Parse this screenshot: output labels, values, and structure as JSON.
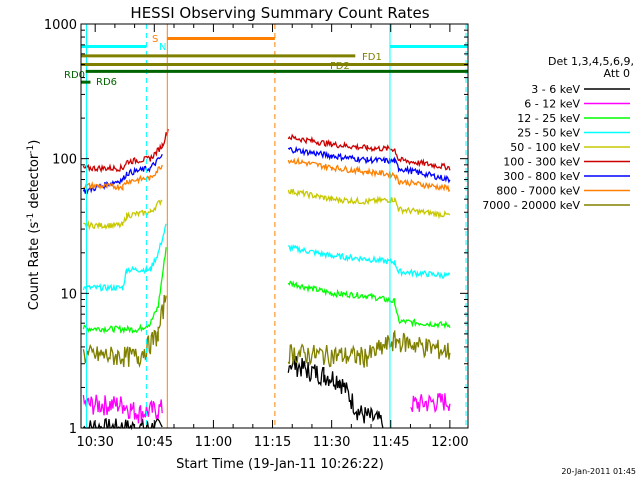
{
  "chart_data": {
    "type": "line",
    "title": "HESSI Observing Summary Count Rates",
    "xlabel": "Start Time (19-Jan-11 10:26:22)",
    "ylabel_main": "Count Rate (s",
    "ylabel_sup1": "-1",
    "ylabel_mid": " detector",
    "ylabel_sup2": "-1",
    "ylabel_end": ")",
    "yscale": "log",
    "ylim": [
      1,
      1000
    ],
    "xlim_minutes": [
      26.4,
      124.6
    ],
    "x_tick_labels": [
      "10:30",
      "10:45",
      "11:00",
      "11:15",
      "11:30",
      "11:45",
      "12:00"
    ],
    "x_ticks_minutes": [
      30,
      45,
      60,
      75,
      90,
      105,
      120
    ],
    "y_tick_labels": [
      "1",
      "10",
      "100",
      "1000"
    ],
    "y_ticks": [
      1,
      10,
      100,
      1000
    ],
    "legend": {
      "header_line1": "Det 1,3,4,5,6,9,",
      "header_line2": "Att 0",
      "placement": "right"
    },
    "series": [
      {
        "name": "3 - 6 keV",
        "color": "#000000",
        "segments": [
          [
            [
              27,
              1
            ],
            [
              47,
              1
            ]
          ],
          [
            [
              79,
              3.1
            ],
            [
              84,
              2.7
            ],
            [
              88,
              2.5
            ],
            [
              92,
              2.3
            ],
            [
              97,
              1.3
            ],
            [
              103,
              1.1
            ]
          ]
        ]
      },
      {
        "name": "6 - 12 keV",
        "color": "#ff00ff",
        "segments": [
          [
            [
              27,
              1.5
            ],
            [
              37,
              1.5
            ],
            [
              41,
              1.3
            ],
            [
              47,
              1.4
            ]
          ],
          [
            [
              110,
              1.5
            ],
            [
              120,
              1.6
            ]
          ]
        ]
      },
      {
        "name": "12 - 25 keV",
        "color": "#00ff00",
        "segments": [
          [
            [
              27,
              5.5
            ],
            [
              41,
              5.4
            ],
            [
              44,
              6
            ],
            [
              46,
              8
            ],
            [
              48,
              22
            ]
          ],
          [
            [
              79,
              12
            ],
            [
              90,
              10
            ],
            [
              99,
              9.6
            ],
            [
              106,
              8.7
            ],
            [
              107,
              6.2
            ],
            [
              120,
              5.8
            ]
          ]
        ]
      },
      {
        "name": "25 - 50 keV",
        "color": "#00ffff",
        "segments": [
          [
            [
              27,
              11
            ],
            [
              37,
              11
            ],
            [
              38,
              15
            ],
            [
              44,
              15
            ],
            [
              46,
              20
            ],
            [
              48,
              32
            ]
          ],
          [
            [
              79,
              22
            ],
            [
              90,
              19
            ],
            [
              99,
              18
            ],
            [
              106,
              17
            ],
            [
              107,
              14.5
            ],
            [
              120,
              13.5
            ]
          ]
        ]
      },
      {
        "name": "50 - 100 keV",
        "color": "#c8c800",
        "segments": [
          [
            [
              27,
              32
            ],
            [
              37,
              32
            ],
            [
              38,
              38
            ],
            [
              44,
              40
            ],
            [
              47,
              50
            ]
          ],
          [
            [
              79,
              58
            ],
            [
              90,
              50
            ],
            [
              99,
              48
            ],
            [
              106,
              50
            ],
            [
              107,
              42
            ],
            [
              120,
              38
            ]
          ]
        ]
      },
      {
        "name": "100 - 300 keV",
        "color": "#cc0000",
        "segments": [
          [
            [
              27,
              85
            ],
            [
              37,
              85
            ],
            [
              38,
              95
            ],
            [
              44,
              100
            ],
            [
              47,
              125
            ],
            [
              48.5,
              165
            ]
          ],
          [
            [
              79,
              145
            ],
            [
              90,
              128
            ],
            [
              99,
              120
            ],
            [
              106,
              118
            ],
            [
              107,
              98
            ],
            [
              120,
              86
            ]
          ]
        ]
      },
      {
        "name": "300 - 800 keV",
        "color": "#0000ff",
        "segments": [
          [
            [
              27,
              57
            ],
            [
              37,
              70
            ],
            [
              38,
              78
            ],
            [
              44,
              85
            ],
            [
              47,
              105
            ]
          ],
          [
            [
              79,
              118
            ],
            [
              90,
              105
            ],
            [
              99,
              98
            ],
            [
              106,
              96
            ],
            [
              107,
              85
            ],
            [
              120,
              70
            ]
          ]
        ]
      },
      {
        "name": "800 - 7000 keV",
        "color": "#ff8000",
        "segments": [
          [
            [
              27,
              63
            ],
            [
              37,
              62
            ],
            [
              38,
              68
            ],
            [
              44,
              72
            ],
            [
              47,
              90
            ]
          ],
          [
            [
              79,
              98
            ],
            [
              90,
              86
            ],
            [
              99,
              80
            ],
            [
              106,
              76
            ],
            [
              107,
              68
            ],
            [
              120,
              60
            ]
          ]
        ]
      },
      {
        "name": "7000 - 20000 keV",
        "color": "#808000",
        "segments": [
          [
            [
              27,
              3.5
            ],
            [
              41,
              3.4
            ],
            [
              46,
              5
            ],
            [
              48,
              10
            ]
          ],
          [
            [
              79,
              3.6
            ],
            [
              99,
              3.4
            ],
            [
              106,
              4.5
            ],
            [
              120,
              3.7
            ]
          ]
        ]
      }
    ],
    "vertical_lines": [
      {
        "x": 27.8,
        "color": "#00ffff",
        "style": "solid"
      },
      {
        "x": 43.0,
        "color": "#00ffff",
        "style": "dashed"
      },
      {
        "x": 48.3,
        "color": "#ff8000",
        "style": "solid"
      },
      {
        "x": 75.6,
        "color": "#ff8000",
        "style": "dashed"
      },
      {
        "x": 104.8,
        "color": "#00ffff",
        "style": "solid"
      },
      {
        "x": 124.1,
        "color": "#00ffff",
        "style": "dashed"
      }
    ],
    "annotation_bars": [
      {
        "label": "S",
        "color": "#ff8000",
        "y": 780,
        "x_start": 48.3,
        "x_end": 75.6
      },
      {
        "label": "N",
        "color": "#00ffff",
        "y": 680,
        "x_start": 26.4,
        "x_end": 43.0
      },
      {
        "label": "",
        "color": "#00ffff",
        "y": 680,
        "x_start": 104.8,
        "x_end": 124.6
      },
      {
        "label": "FD1",
        "color": "#808000",
        "y": 580,
        "x_start": 26.4,
        "x_end": 96.0
      },
      {
        "label": "FD2",
        "color": "#808000",
        "y": 500,
        "x_start": 26.4,
        "x_end": 124.6
      },
      {
        "label": "RD0",
        "color": "#006400",
        "y": 445,
        "x_start": 27.6,
        "x_end": 124.6
      },
      {
        "label": "RD6",
        "color": "#006400",
        "y": 370,
        "x_start": 26.4,
        "x_end": 28.8
      }
    ]
  },
  "footer_date": "20-Jan-2011 01:45"
}
